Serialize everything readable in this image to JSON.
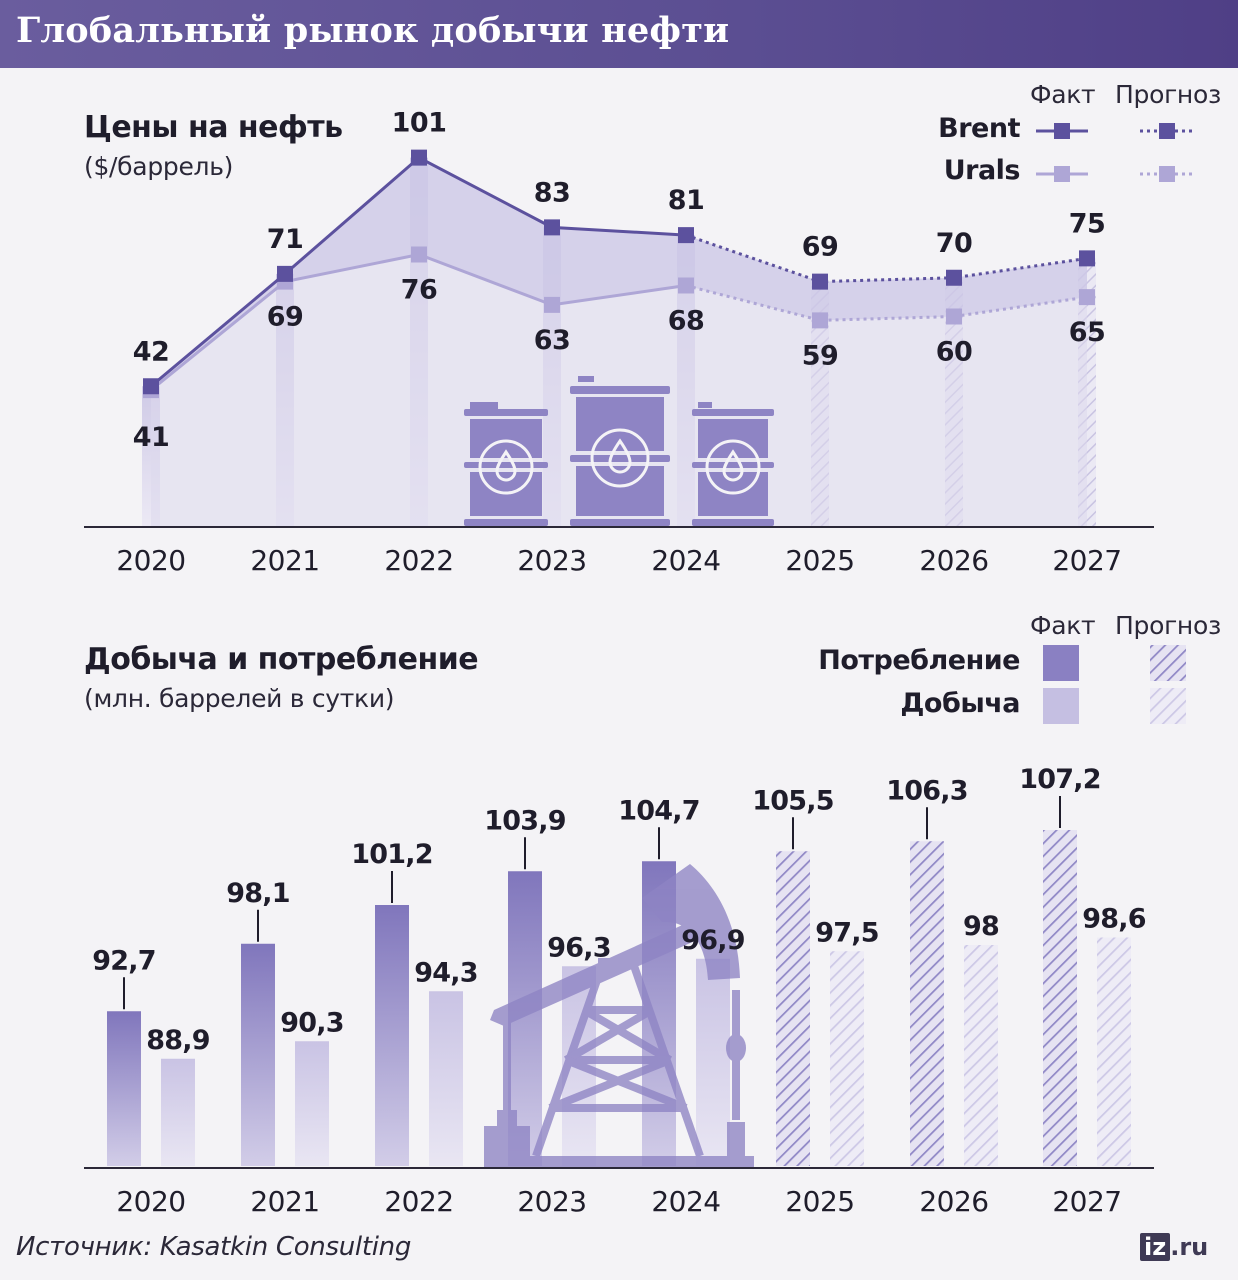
{
  "title": "Глобальный рынок добычи нефти",
  "source": "Источник: Kasatkin Consulting",
  "logo": {
    "box": "iz",
    "rest": ".ru"
  },
  "colors": {
    "header": "#5b4e92",
    "brent": "#5c519e",
    "urals": "#aea6d6",
    "consumption": "#8a80c2",
    "production": "#c5bfe2",
    "area": "#dcd8ec"
  },
  "icons": [
    "oil-barrel-icon",
    "oil-pumpjack-icon"
  ],
  "prices": {
    "title": "Цены на нефть",
    "subtitle": "($/баррель)",
    "legend": {
      "fact": "Факт",
      "forecast": "Прогноз",
      "brent": "Brent",
      "urals": "Urals"
    }
  },
  "production": {
    "title": "Добыча и потребление",
    "subtitle": "(млн. баррелей в сутки)",
    "legend": {
      "fact": "Факт",
      "forecast": "Прогноз",
      "consumption": "Потребление",
      "production": "Добыча"
    }
  },
  "chart_data": [
    {
      "type": "line",
      "title": "Цены на нефть",
      "ylabel": "$/баррель",
      "categories": [
        "2020",
        "2021",
        "2022",
        "2023",
        "2024",
        "2025",
        "2026",
        "2027"
      ],
      "forecast_from": "2025",
      "grid": false,
      "legend_position": "top-right",
      "series": [
        {
          "name": "Brent",
          "values": [
            42,
            71,
            101,
            83,
            81,
            69,
            70,
            75
          ]
        },
        {
          "name": "Urals",
          "values": [
            41,
            69,
            76,
            63,
            68,
            59,
            60,
            65
          ]
        }
      ]
    },
    {
      "type": "bar",
      "title": "Добыча и потребление",
      "ylabel": "млн. баррелей в сутки",
      "categories": [
        "2020",
        "2021",
        "2022",
        "2023",
        "2024",
        "2025",
        "2026",
        "2027"
      ],
      "forecast_from": "2025",
      "grid": false,
      "legend_position": "top-right",
      "series": [
        {
          "name": "Потребление",
          "values": [
            92.7,
            98.1,
            101.2,
            103.9,
            104.7,
            105.5,
            106.3,
            107.2
          ],
          "labels": [
            "92,7",
            "98,1",
            "101,2",
            "103,9",
            "104,7",
            "105,5",
            "106,3",
            "107,2"
          ]
        },
        {
          "name": "Добыча",
          "values": [
            88.9,
            90.3,
            94.3,
            96.3,
            96.9,
            97.5,
            98,
            98.6
          ],
          "labels": [
            "88,9",
            "90,3",
            "94,3",
            "96,3",
            "96,9",
            "97,5",
            "98",
            "98,6"
          ]
        }
      ]
    }
  ]
}
